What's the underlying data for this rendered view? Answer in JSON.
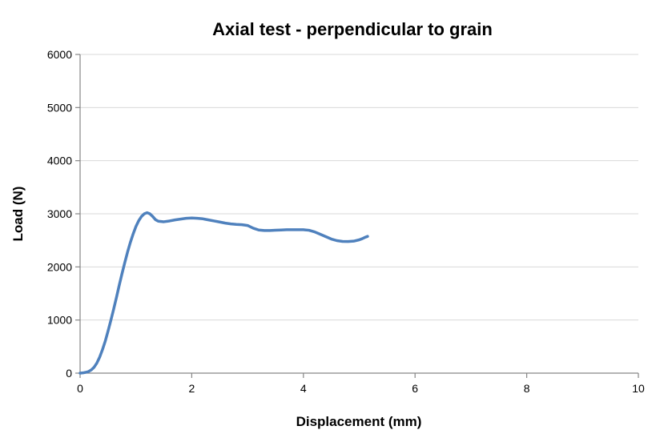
{
  "chart_data": {
    "type": "line",
    "title": "Axial test - perpendicular to grain",
    "xlabel": "Displacement (mm)",
    "ylabel": "Load (N)",
    "xlim": [
      0,
      10
    ],
    "ylim": [
      0,
      6000
    ],
    "x_ticks": [
      0,
      2,
      4,
      6,
      8,
      10
    ],
    "y_ticks": [
      0,
      1000,
      2000,
      3000,
      4000,
      5000,
      6000
    ],
    "grid": "horizontal",
    "legend": "none",
    "series": [
      {
        "name": "Load",
        "color": "#4F81BD",
        "points": [
          [
            0,
            0
          ],
          [
            0.05,
            5
          ],
          [
            0.1,
            15
          ],
          [
            0.15,
            30
          ],
          [
            0.2,
            60
          ],
          [
            0.25,
            110
          ],
          [
            0.3,
            190
          ],
          [
            0.35,
            300
          ],
          [
            0.4,
            440
          ],
          [
            0.45,
            600
          ],
          [
            0.5,
            790
          ],
          [
            0.55,
            990
          ],
          [
            0.6,
            1200
          ],
          [
            0.65,
            1420
          ],
          [
            0.7,
            1650
          ],
          [
            0.75,
            1870
          ],
          [
            0.8,
            2080
          ],
          [
            0.85,
            2280
          ],
          [
            0.9,
            2460
          ],
          [
            0.95,
            2620
          ],
          [
            1.0,
            2760
          ],
          [
            1.05,
            2870
          ],
          [
            1.1,
            2950
          ],
          [
            1.15,
            3000
          ],
          [
            1.2,
            3020
          ],
          [
            1.25,
            3000
          ],
          [
            1.3,
            2950
          ],
          [
            1.35,
            2890
          ],
          [
            1.4,
            2860
          ],
          [
            1.5,
            2850
          ],
          [
            1.6,
            2865
          ],
          [
            1.7,
            2885
          ],
          [
            1.8,
            2900
          ],
          [
            1.9,
            2915
          ],
          [
            2.0,
            2920
          ],
          [
            2.1,
            2915
          ],
          [
            2.2,
            2905
          ],
          [
            2.3,
            2885
          ],
          [
            2.4,
            2865
          ],
          [
            2.5,
            2845
          ],
          [
            2.6,
            2825
          ],
          [
            2.7,
            2810
          ],
          [
            2.8,
            2800
          ],
          [
            2.9,
            2795
          ],
          [
            3.0,
            2780
          ],
          [
            3.1,
            2730
          ],
          [
            3.2,
            2695
          ],
          [
            3.3,
            2685
          ],
          [
            3.4,
            2685
          ],
          [
            3.5,
            2690
          ],
          [
            3.6,
            2695
          ],
          [
            3.7,
            2700
          ],
          [
            3.8,
            2700
          ],
          [
            3.9,
            2700
          ],
          [
            4.0,
            2700
          ],
          [
            4.1,
            2690
          ],
          [
            4.2,
            2660
          ],
          [
            4.3,
            2615
          ],
          [
            4.4,
            2570
          ],
          [
            4.5,
            2525
          ],
          [
            4.6,
            2495
          ],
          [
            4.7,
            2480
          ],
          [
            4.8,
            2478
          ],
          [
            4.9,
            2485
          ],
          [
            5.0,
            2510
          ],
          [
            5.05,
            2530
          ],
          [
            5.1,
            2555
          ],
          [
            5.15,
            2575
          ]
        ]
      }
    ]
  },
  "colors": {
    "line": "#4F81BD",
    "gridline": "#D9D9D9",
    "axis": "#868686",
    "background": "#FFFFFF",
    "text": "#000000"
  }
}
